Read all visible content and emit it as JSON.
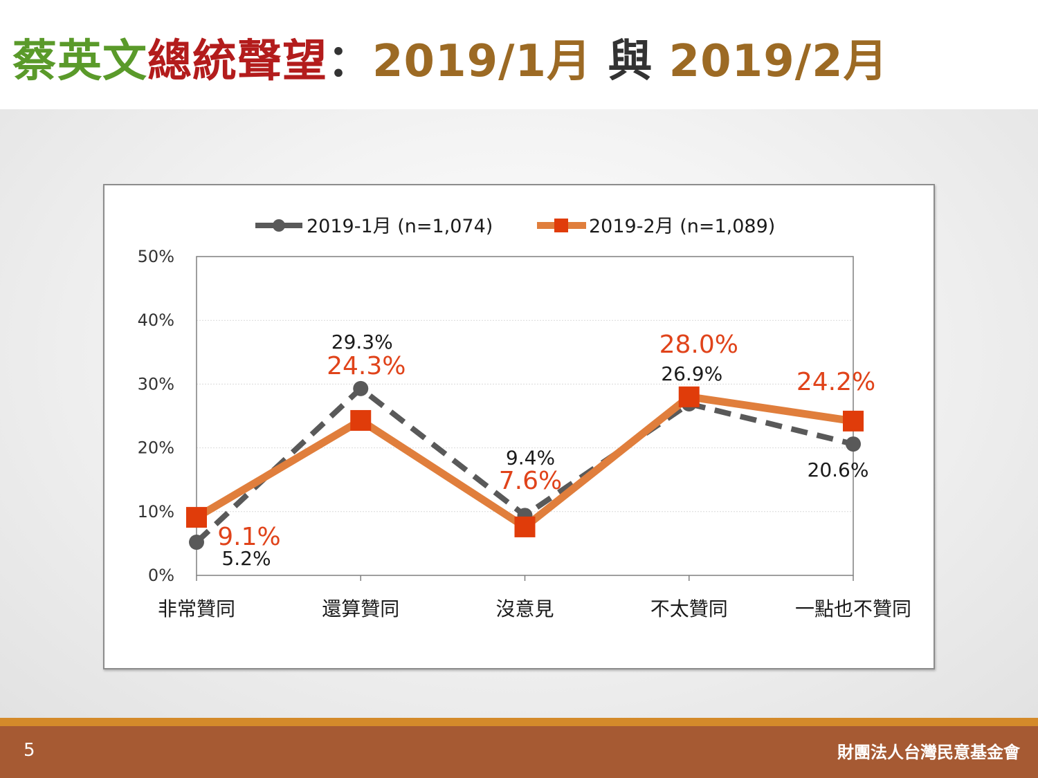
{
  "slide": {
    "title_parts": {
      "name": "蔡英文",
      "topic": "總統聲望",
      "colon": "：",
      "period1": "2019/1月",
      "conj": " 與 ",
      "period2": "2019/2月"
    },
    "page_number": "5",
    "organization": "財團法人台灣民意基金會"
  },
  "colors": {
    "name": "#5a9a2a",
    "topic": "#b31c1c",
    "period": "#9c6a24",
    "conj": "#333333",
    "series1": "#595959",
    "series2": "#e07e3c",
    "series2_marker": "#e03c0a",
    "series2_label": "#e0431a",
    "footer": "#a65a33",
    "footer_accent": "#d48a2a"
  },
  "chart_data": {
    "type": "line",
    "categories": [
      "非常贊同",
      "還算贊同",
      "沒意見",
      "不太贊同",
      "一點也不贊同"
    ],
    "series": [
      {
        "name": "2019-1月 (n=1,074)",
        "values": [
          5.2,
          29.3,
          9.4,
          26.9,
          20.6
        ],
        "labels": [
          "5.2%",
          "29.3%",
          "9.4%",
          "26.9%",
          "20.6%"
        ],
        "line_style": "dashed",
        "marker": "circle"
      },
      {
        "name": "2019-2月 (n=1,089)",
        "values": [
          9.1,
          24.3,
          7.6,
          28.0,
          24.2
        ],
        "labels": [
          "9.1%",
          "24.3%",
          "7.6%",
          "28.0%",
          "24.2%"
        ],
        "line_style": "solid",
        "marker": "square"
      }
    ],
    "ylim": [
      0,
      50
    ],
    "yticks": [
      0,
      10,
      20,
      30,
      40,
      50
    ],
    "ytick_labels": [
      "0%",
      "10%",
      "20%",
      "30%",
      "40%",
      "50%"
    ],
    "grid": true,
    "legend": "top"
  }
}
